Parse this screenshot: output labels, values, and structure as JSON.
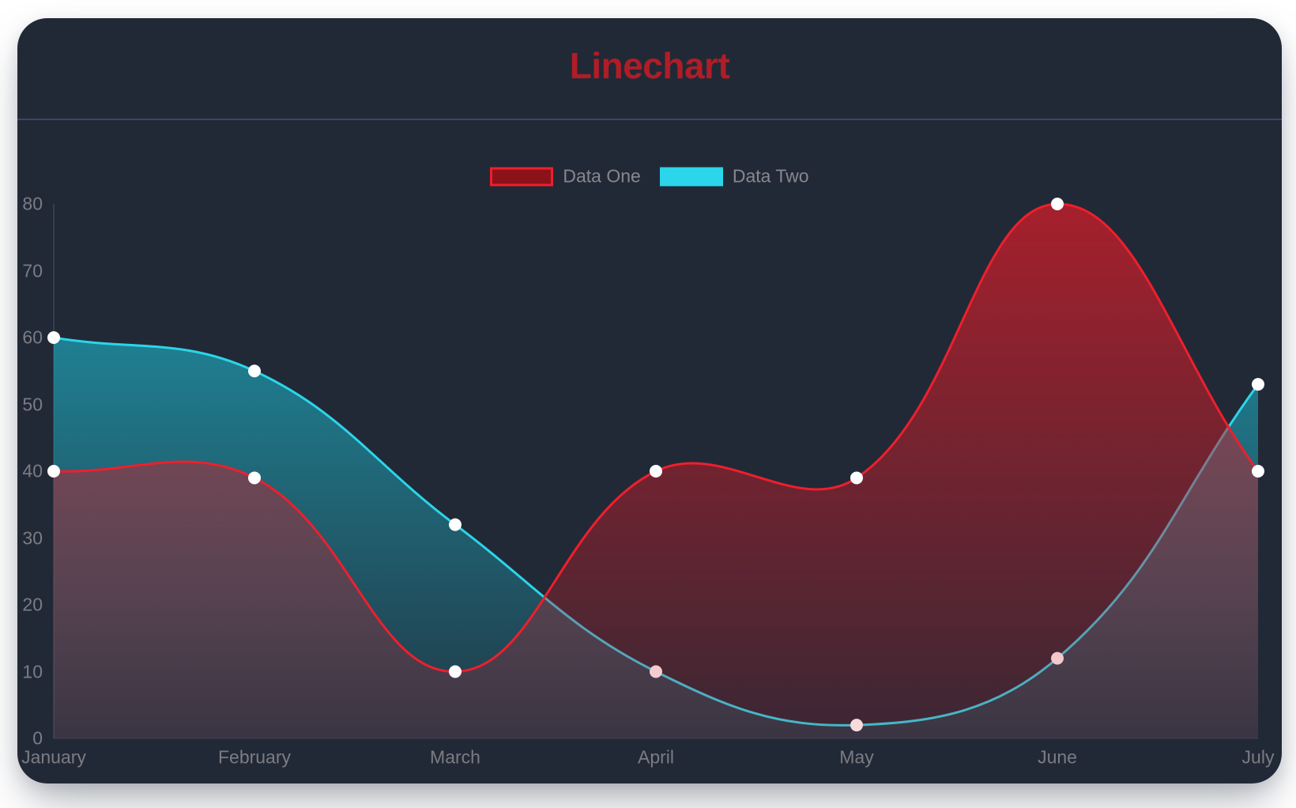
{
  "window": {
    "background": "#ffffff"
  },
  "card": {
    "background": "#222936",
    "title_color": "#b01d27",
    "divider_color": "#3a4765"
  },
  "legend": {
    "text_color": "#87878e",
    "items": [
      {
        "label": "Data One",
        "swatch_fill": "#8c1118",
        "swatch_border": "#ee1f2d"
      },
      {
        "label": "Data Two",
        "swatch_fill": "#2bd5ea",
        "swatch_border": "#2bd5ea"
      }
    ]
  },
  "chart_data": {
    "type": "line",
    "title": "Linechart",
    "categories": [
      "January",
      "February",
      "March",
      "April",
      "May",
      "June",
      "July"
    ],
    "series": [
      {
        "name": "Data One",
        "values": [
          40,
          39,
          10,
          40,
          39,
          80,
          40
        ],
        "line_color": "#ee1f2d",
        "fill_rgb": "203,30,42",
        "fill_alpha_top": 0.78,
        "fill_alpha_bottom": 0.15
      },
      {
        "name": "Data Two",
        "values": [
          60,
          55,
          32,
          10,
          2,
          12,
          53
        ],
        "line_color": "#2bd5ea",
        "fill_rgb": "30,172,192",
        "fill_alpha_top": 0.85,
        "fill_alpha_bottom": 0.12
      }
    ],
    "xlabel": "",
    "ylabel": "",
    "ylim": [
      0,
      80
    ],
    "yticks": [
      0,
      10,
      20,
      30,
      40,
      50,
      60,
      70,
      80
    ],
    "legend_position": "top",
    "grid": false,
    "curve_tension": 0.4,
    "line_width": 3,
    "point_color": "#ffffff",
    "point_radius": 8,
    "axis_label_color": "#7b7c83",
    "axis_line_color": "rgba(255,255,255,0.10)"
  }
}
